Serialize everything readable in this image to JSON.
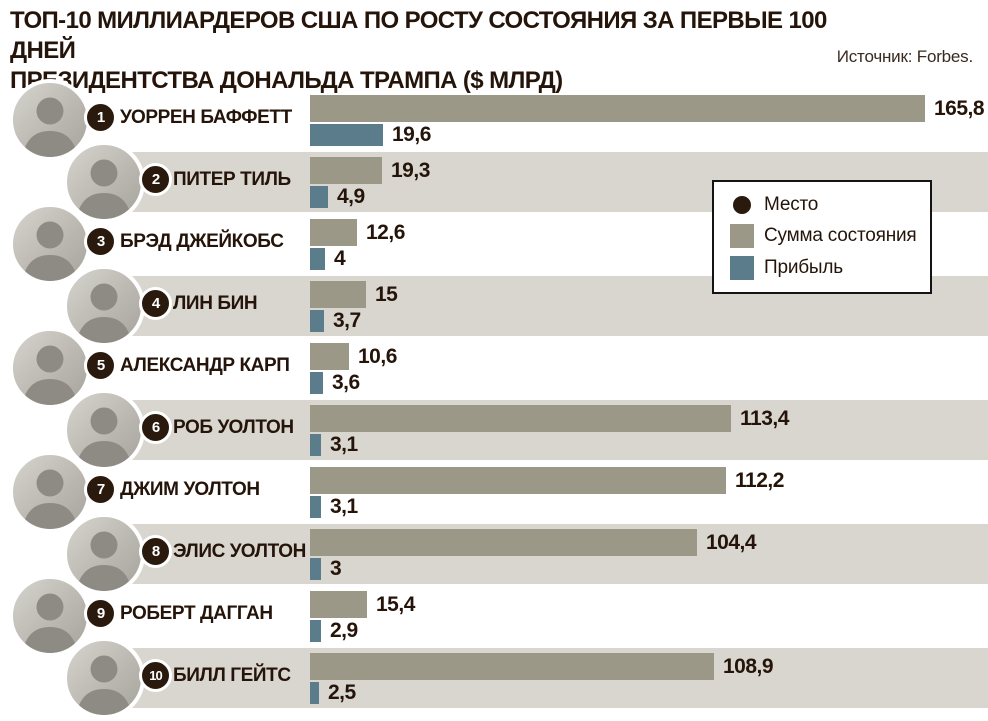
{
  "header": {
    "title_line1": "ТОП-10 МИЛЛИАРДЕРОВ США ПО РОСТУ СОСТОЯНИЯ ЗА ПЕРВЫЕ 100 ДНЕЙ",
    "title_line2": "ПРЕЗИДЕНТСТВА ДОНАЛЬДА ТРАМПА ($ МЛРД)",
    "source": "Источник: Forbes."
  },
  "legend": {
    "items": [
      {
        "label": "Место",
        "marker": "circle",
        "color": "#2a1a0e"
      },
      {
        "label": "Сумма состояния",
        "marker": "square",
        "color": "#9b9887"
      },
      {
        "label": "Прибыль",
        "marker": "square",
        "color": "#5a7c8b"
      }
    ]
  },
  "colors": {
    "bar_wealth": "#9b9887",
    "bar_gain": "#5a7c8b",
    "row_stripe": "#d9d6d0",
    "badge": "#2a1a0e",
    "text_dark": "#241409"
  },
  "chart_data": {
    "type": "bar",
    "orientation": "horizontal",
    "title": "ТОП-10 МИЛЛИАРДЕРОВ США ПО РОСТУ СОСТОЯНИЯ ЗА ПЕРВЫЕ 100 ДНЕЙ ПРЕЗИДЕНТСТВА ДОНАЛЬДА ТРАМПА ($ МЛРД)",
    "source": "Forbes",
    "unit": "$ млрд",
    "xlim": [
      0,
      183
    ],
    "grid": false,
    "legend_position": "top-right",
    "series_names": [
      "Сумма состояния",
      "Прибыль"
    ],
    "rows": [
      {
        "rank": "1",
        "name": "УОРРЕН БАФФЕТТ",
        "wealth": "165,8",
        "gain": "19,6"
      },
      {
        "rank": "2",
        "name": "ПИТЕР ТИЛЬ",
        "wealth": "19,3",
        "gain": "4,9"
      },
      {
        "rank": "3",
        "name": "БРЭД ДЖЕЙКОБС",
        "wealth": "12,6",
        "gain": "4"
      },
      {
        "rank": "4",
        "name": "ЛИН БИН",
        "wealth": "15",
        "gain": "3,7"
      },
      {
        "rank": "5",
        "name": "АЛЕКСАНДР КАРП",
        "wealth": "10,6",
        "gain": "3,6"
      },
      {
        "rank": "6",
        "name": "РОБ УОЛТОН",
        "wealth": "113,4",
        "gain": "3,1"
      },
      {
        "rank": "7",
        "name": "ДЖИМ УОЛТОН",
        "wealth": "112,2",
        "gain": "3,1"
      },
      {
        "rank": "8",
        "name": "ЭЛИС УОЛТОН",
        "wealth": "104,4",
        "gain": "3"
      },
      {
        "rank": "9",
        "name": "РОБЕРТ ДАГГАН",
        "wealth": "15,4",
        "gain": "2,9"
      },
      {
        "rank": "10",
        "name": "БИЛЛ ГЕЙТС",
        "wealth": "108,9",
        "gain": "2,5"
      }
    ]
  }
}
